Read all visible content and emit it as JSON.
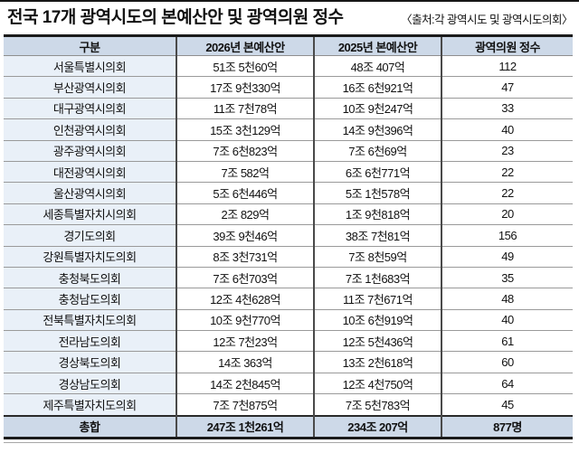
{
  "page": {
    "title": "전국 17개 광역시도의 본예산안 및 광역의원 정수",
    "source": "〈출처:각 광역시도 및 광역시도의회〉"
  },
  "chart_data": {
    "type": "table",
    "title": "전국 17개 광역시도의 본예산안 및 광역의원 정수",
    "source": "〈출처:각 광역시도 및 광역시도의회〉",
    "columns": [
      "구분",
      "2026년 본예산안",
      "2025년 본예산안",
      "광역의원 정수"
    ],
    "rows": [
      [
        "서울특별시의회",
        "51조 5천60억",
        "48조 407억",
        "112"
      ],
      [
        "부산광역시의회",
        "17조 9천330억",
        "16조 6천921억",
        "47"
      ],
      [
        "대구광역시의회",
        "11조 7천78억",
        "10조 9천247억",
        "33"
      ],
      [
        "인천광역시의회",
        "15조 3천129억",
        "14조 9천396억",
        "40"
      ],
      [
        "광주광역시의회",
        "7조 6천823억",
        "7조 6천69억",
        "23"
      ],
      [
        "대전광역시의회",
        "7조 582억",
        "6조 6천771억",
        "22"
      ],
      [
        "울산광역시의회",
        "5조 6천446억",
        "5조 1천578억",
        "22"
      ],
      [
        "세종특별자치시의회",
        "2조 829억",
        "1조 9천818억",
        "20"
      ],
      [
        "경기도의회",
        "39조 9천46억",
        "38조 7천81억",
        "156"
      ],
      [
        "강원특별자치도의회",
        "8조 3천731억",
        "7조 8천59억",
        "49"
      ],
      [
        "충청북도의회",
        "7조 6천703억",
        "7조 1천683억",
        "35"
      ],
      [
        "충청남도의회",
        "12조 4천628억",
        "11조 7천671억",
        "48"
      ],
      [
        "전북특별자치도의회",
        "10조 9천770억",
        "10조 6천919억",
        "40"
      ],
      [
        "전라남도의회",
        "12조 7천23억",
        "12조 5천436억",
        "61"
      ],
      [
        "경상북도의회",
        "14조 363억",
        "13조 2천618억",
        "60"
      ],
      [
        "경상남도의회",
        "14조 2천845억",
        "12조 4천750억",
        "64"
      ],
      [
        "제주특별자치도의회",
        "7조 7천875억",
        "7조 5천783억",
        "45"
      ]
    ],
    "total": [
      "총합",
      "247조 1천261억",
      "234조 207억",
      "877명"
    ],
    "colors": {
      "header_bg": "#cdd9e8",
      "name_column_bg": "#e9f0f8",
      "total_row_bg": "#cdd9e8",
      "heavy_border": "#1b1b1b",
      "column_border": "#4a4a4a",
      "row_border": "#9a9a9a"
    }
  }
}
